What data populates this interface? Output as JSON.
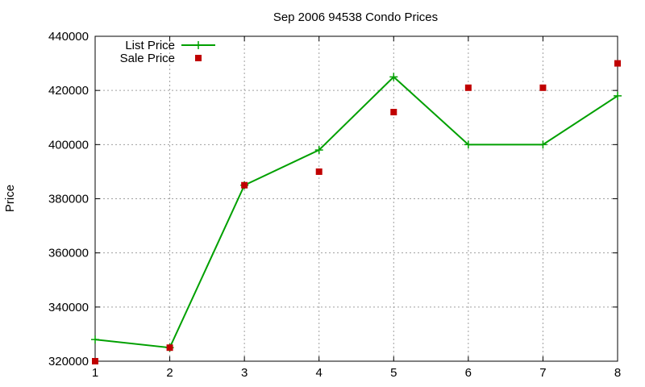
{
  "chart_data": {
    "type": "line",
    "title": "Sep 2006 94538 Condo Prices",
    "xlabel": "",
    "ylabel": "Price",
    "x": [
      1,
      2,
      3,
      4,
      5,
      6,
      7,
      8
    ],
    "xlim": [
      1,
      8
    ],
    "ylim": [
      320000,
      440000
    ],
    "xticks": [
      1,
      2,
      3,
      4,
      5,
      6,
      7,
      8
    ],
    "yticks": [
      320000,
      340000,
      360000,
      380000,
      400000,
      420000,
      440000
    ],
    "grid": true,
    "legend_position": "top-left",
    "series": [
      {
        "name": "List Price",
        "style": "linespoints",
        "marker": "plus",
        "color": "#00a000",
        "values": [
          328000,
          325000,
          385000,
          398000,
          425000,
          400000,
          400000,
          418000
        ]
      },
      {
        "name": "Sale Price",
        "style": "points",
        "marker": "square",
        "color": "#c00000",
        "values": [
          320000,
          325000,
          385000,
          390000,
          412000,
          421000,
          421000,
          430000
        ]
      }
    ]
  }
}
